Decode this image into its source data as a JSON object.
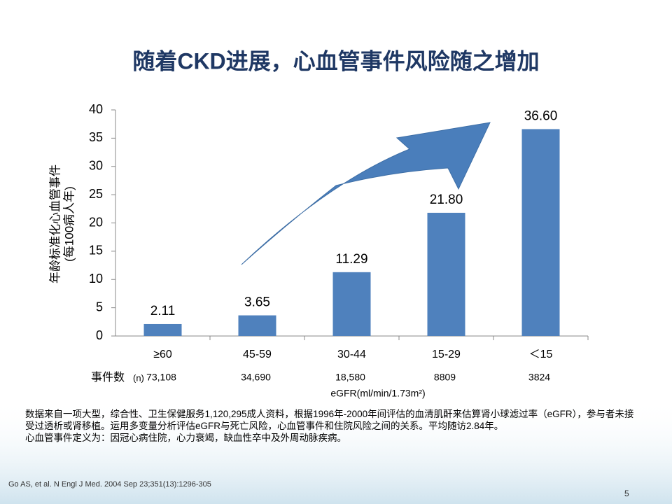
{
  "chart_data": {
    "type": "bar",
    "title": "随着CKD进展，心血管事件风险随之增加",
    "ylabel": [
      "年龄标准化心血管事件",
      "(每100病人年)"
    ],
    "xlabel": "eGFR(ml/min/1.73m²)",
    "categories": [
      "≥60",
      "45-59",
      "30-44",
      "15-29",
      "＜15"
    ],
    "values": [
      2.11,
      3.65,
      11.29,
      21.8,
      36.6
    ],
    "value_labels": [
      "2.11",
      "3.65",
      "11.29",
      "21.80",
      "36.60"
    ],
    "color": "#4f81bd",
    "ylim": [
      0,
      40
    ],
    "yticks": [
      0,
      5,
      10,
      15,
      20,
      25,
      30,
      35,
      40
    ],
    "grid": false,
    "events_label": "事件数",
    "events_unit": "(n)",
    "events": [
      "73,108",
      "34,690",
      "18,580",
      "8809",
      "3824"
    ]
  },
  "notes": [
    "数据来自一项大型，综合性、卫生保健服务1,120,295成人资料，根据1996年-2000年间评估的血清肌酐来估算肾小球滤过率（eGFR），参与者未接受过透析或肾移植。运用多变量分析评估eGFR与死亡风险，心血管事件和住院风险之间的关系。平均随访2.84年。",
    "心血管事件定义为：因冠心病住院，心力衰竭，缺血性卒中及外周动脉疾病。"
  ],
  "citation": "Go AS, et al. N Engl J Med. 2004 Sep 23;351(13):1296-305",
  "page_number": "5"
}
